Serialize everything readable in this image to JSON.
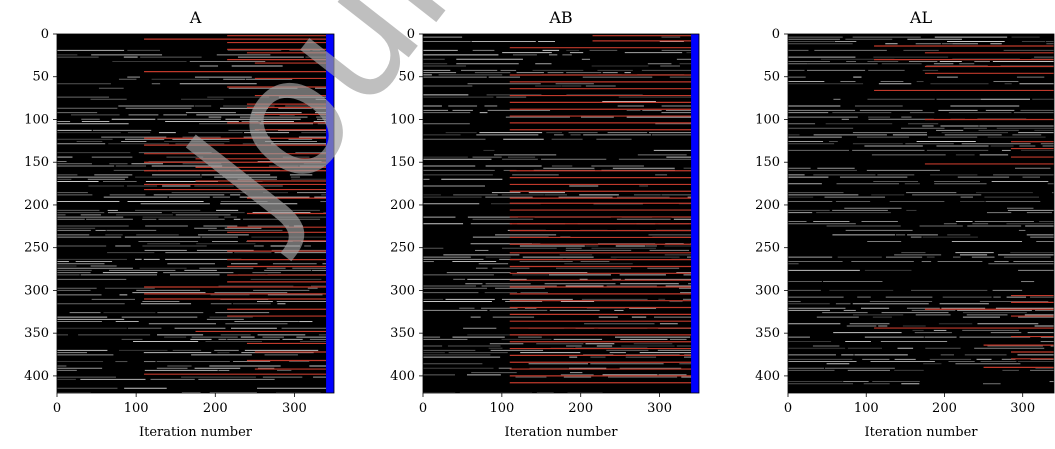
{
  "watermark": "Journal",
  "colors": {
    "background": "#000000",
    "trace": "#d8d8d8",
    "pruned": "#c0392b",
    "final": "#0000ff"
  },
  "chart_data": [
    {
      "type": "heatmap",
      "title": "A",
      "xlabel": "Iteration number",
      "xlim": [
        0,
        350
      ],
      "ylim": [
        0,
        420
      ],
      "xticks": [
        0,
        100,
        200,
        300
      ],
      "yticks": [
        0,
        50,
        100,
        150,
        200,
        250,
        300,
        350,
        400
      ],
      "final_column_start": 340,
      "pruned_rows": [
        {
          "y": 2,
          "start": 215
        },
        {
          "y": 6,
          "start": 110
        },
        {
          "y": 10,
          "start": 215
        },
        {
          "y": 18,
          "start": 215
        },
        {
          "y": 22,
          "start": 240
        },
        {
          "y": 30,
          "start": 215
        },
        {
          "y": 34,
          "start": 250
        },
        {
          "y": 44,
          "start": 110
        },
        {
          "y": 52,
          "start": 250
        },
        {
          "y": 62,
          "start": 215
        },
        {
          "y": 72,
          "start": 250
        },
        {
          "y": 82,
          "start": 240
        },
        {
          "y": 86,
          "start": 240
        },
        {
          "y": 94,
          "start": 250
        },
        {
          "y": 104,
          "start": 215
        },
        {
          "y": 112,
          "start": 250
        },
        {
          "y": 122,
          "start": 110
        },
        {
          "y": 130,
          "start": 110
        },
        {
          "y": 140,
          "start": 110
        },
        {
          "y": 146,
          "start": 175
        },
        {
          "y": 150,
          "start": 110
        },
        {
          "y": 156,
          "start": 175
        },
        {
          "y": 160,
          "start": 110
        },
        {
          "y": 172,
          "start": 175
        },
        {
          "y": 176,
          "start": 110
        },
        {
          "y": 182,
          "start": 110
        },
        {
          "y": 192,
          "start": 240
        },
        {
          "y": 210,
          "start": 240
        },
        {
          "y": 226,
          "start": 215
        },
        {
          "y": 232,
          "start": 215
        },
        {
          "y": 242,
          "start": 240
        },
        {
          "y": 254,
          "start": 215
        },
        {
          "y": 264,
          "start": 215
        },
        {
          "y": 272,
          "start": 215
        },
        {
          "y": 282,
          "start": 215
        },
        {
          "y": 290,
          "start": 215
        },
        {
          "y": 296,
          "start": 110
        },
        {
          "y": 304,
          "start": 110
        },
        {
          "y": 310,
          "start": 110
        },
        {
          "y": 322,
          "start": 215
        },
        {
          "y": 330,
          "start": 215
        },
        {
          "y": 348,
          "start": 175
        },
        {
          "y": 362,
          "start": 240
        },
        {
          "y": 372,
          "start": 250
        },
        {
          "y": 382,
          "start": 240
        },
        {
          "y": 392,
          "start": 250
        },
        {
          "y": 398,
          "start": 110
        }
      ]
    },
    {
      "type": "heatmap",
      "title": "AB",
      "xlabel": "Iteration number",
      "xlim": [
        0,
        350
      ],
      "ylim": [
        0,
        420
      ],
      "xticks": [
        0,
        100,
        200,
        300
      ],
      "yticks": [
        0,
        50,
        100,
        150,
        200,
        250,
        300,
        350,
        400
      ],
      "final_column_start": 340,
      "pruned_rows": [
        {
          "y": 2,
          "start": 215
        },
        {
          "y": 8,
          "start": 215
        },
        {
          "y": 16,
          "start": 110
        },
        {
          "y": 48,
          "start": 110
        },
        {
          "y": 56,
          "start": 110
        },
        {
          "y": 64,
          "start": 110
        },
        {
          "y": 72,
          "start": 110
        },
        {
          "y": 80,
          "start": 110
        },
        {
          "y": 88,
          "start": 110
        },
        {
          "y": 96,
          "start": 110
        },
        {
          "y": 104,
          "start": 110
        },
        {
          "y": 112,
          "start": 110
        },
        {
          "y": 160,
          "start": 110
        },
        {
          "y": 168,
          "start": 110
        },
        {
          "y": 176,
          "start": 110
        },
        {
          "y": 184,
          "start": 110
        },
        {
          "y": 192,
          "start": 110
        },
        {
          "y": 198,
          "start": 110
        },
        {
          "y": 206,
          "start": 110
        },
        {
          "y": 214,
          "start": 110
        },
        {
          "y": 222,
          "start": 110
        },
        {
          "y": 230,
          "start": 110
        },
        {
          "y": 238,
          "start": 110
        },
        {
          "y": 246,
          "start": 110
        },
        {
          "y": 256,
          "start": 110
        },
        {
          "y": 264,
          "start": 110
        },
        {
          "y": 272,
          "start": 110
        },
        {
          "y": 280,
          "start": 110
        },
        {
          "y": 288,
          "start": 110
        },
        {
          "y": 296,
          "start": 110
        },
        {
          "y": 304,
          "start": 110
        },
        {
          "y": 312,
          "start": 110
        },
        {
          "y": 320,
          "start": 110
        },
        {
          "y": 328,
          "start": 110
        },
        {
          "y": 336,
          "start": 110
        },
        {
          "y": 344,
          "start": 110
        },
        {
          "y": 352,
          "start": 110
        },
        {
          "y": 360,
          "start": 110
        },
        {
          "y": 368,
          "start": 110
        },
        {
          "y": 376,
          "start": 110
        },
        {
          "y": 384,
          "start": 110
        },
        {
          "y": 392,
          "start": 110
        },
        {
          "y": 400,
          "start": 110
        },
        {
          "y": 408,
          "start": 110
        }
      ]
    },
    {
      "type": "heatmap",
      "title": "AL",
      "xlabel": "Iteration number",
      "xlim": [
        0,
        340
      ],
      "ylim": [
        0,
        420
      ],
      "xticks": [
        0,
        100,
        200,
        300
      ],
      "yticks": [
        0,
        50,
        100,
        150,
        200,
        250,
        300,
        350,
        400
      ],
      "final_column_start": null,
      "pruned_rows": [
        {
          "y": 14,
          "start": 110
        },
        {
          "y": 22,
          "start": 175
        },
        {
          "y": 30,
          "start": 110
        },
        {
          "y": 38,
          "start": 175
        },
        {
          "y": 46,
          "start": 175
        },
        {
          "y": 66,
          "start": 110
        },
        {
          "y": 100,
          "start": 175
        },
        {
          "y": 126,
          "start": 285
        },
        {
          "y": 134,
          "start": 285
        },
        {
          "y": 144,
          "start": 285
        },
        {
          "y": 152,
          "start": 175
        },
        {
          "y": 306,
          "start": 285
        },
        {
          "y": 314,
          "start": 285
        },
        {
          "y": 322,
          "start": 175
        },
        {
          "y": 330,
          "start": 285
        },
        {
          "y": 344,
          "start": 110
        },
        {
          "y": 354,
          "start": 285
        },
        {
          "y": 364,
          "start": 250
        },
        {
          "y": 372,
          "start": 285
        },
        {
          "y": 380,
          "start": 285
        },
        {
          "y": 390,
          "start": 250
        }
      ]
    }
  ]
}
